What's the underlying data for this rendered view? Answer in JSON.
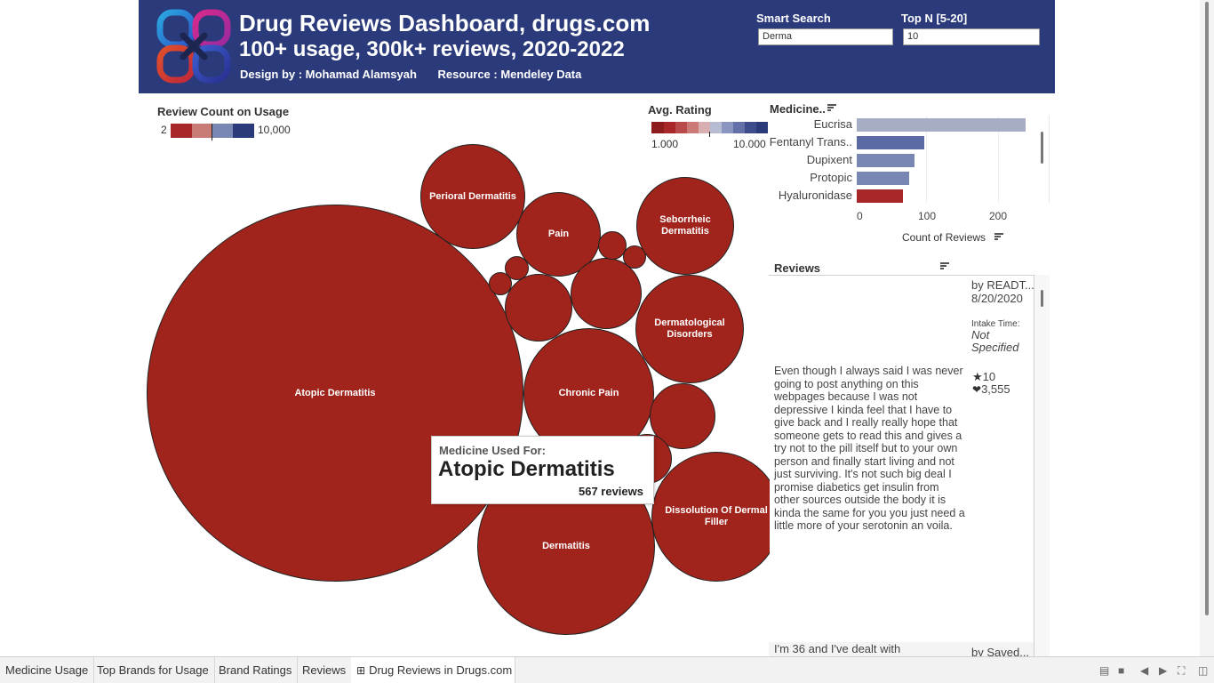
{
  "header": {
    "title": "Drug Reviews Dashboard, drugs.com",
    "subtitle": "100+ usage, 300k+ reviews, 2020-2022",
    "design_by": "Design by : Mohamad Alamsyah",
    "resource": "Resource  : Mendeley Data",
    "smart_search": {
      "label": "Smart Search",
      "value": "Derma"
    },
    "top_n": {
      "label": "Top N [5-20]",
      "value": "10"
    }
  },
  "review_count_legend": {
    "title": "Review Count on Usage",
    "min": "2",
    "max": "10,000"
  },
  "avg_rating_legend": {
    "title": "Avg. Rating",
    "min": "1.000",
    "max": "10.000"
  },
  "bubbles": [
    {
      "label": "Atopic Dermatitis"
    },
    {
      "label": "Perioral Dermatitis"
    },
    {
      "label": "Pain"
    },
    {
      "label": "Seborrheic Dermatitis"
    },
    {
      "label": "Dermatological Disorders"
    },
    {
      "label": "Chronic Pain"
    },
    {
      "label": "Dermatitis"
    },
    {
      "label": "Dissolution Of Dermal Filler"
    }
  ],
  "tooltip": {
    "label": "Medicine Used For:",
    "value": "Atopic Dermatitis",
    "count": "567 reviews"
  },
  "bar_chart": {
    "title": "Medicine..",
    "axis_title": "Count of Reviews",
    "ticks": [
      "0",
      "100",
      "200"
    ]
  },
  "chart_data": {
    "type": "bar",
    "title": "Medicine..",
    "xlabel": "Count of Reviews",
    "categories": [
      "Eucrisa",
      "Fentanyl Trans..",
      "Dupixent",
      "Protopic",
      "Hyaluronidase"
    ],
    "values": [
      238,
      95,
      81,
      74,
      65
    ],
    "colors": [
      "#a8adc6",
      "#5b6aa3",
      "#7886b3",
      "#7886b3",
      "#a8282a"
    ],
    "xlim": [
      0,
      260
    ]
  },
  "reviews": {
    "title": "Reviews",
    "author": "by READT...",
    "date": "8/20/2020",
    "intake_label": "Intake Time:",
    "intake_value": "Not Specified",
    "rating": "10",
    "likes": "3,555",
    "text": "Even though I always said I was never going to post anything on this webpages because I was not depressive I kinda feel that I have to give back and I really really hope that someone gets to read this and gives a try not to the pill itself but to your own person and finally start living and not just surviving. It's not such big deal I promise diabetics get insulin from other sources outside the body it is kinda the same for you you just need a little more of your serotonin an voila.",
    "next_text": "I'm 36 and I've dealt with",
    "next_author": "by Saved..."
  },
  "tabs": [
    "Medicine Usage",
    "Top Brands for Usage",
    "Brand Ratings",
    "Reviews",
    "Drug Reviews in Drugs.com"
  ],
  "colors": {
    "header_bg": "#2b3a7a",
    "bubble_red": "#a0241c"
  }
}
